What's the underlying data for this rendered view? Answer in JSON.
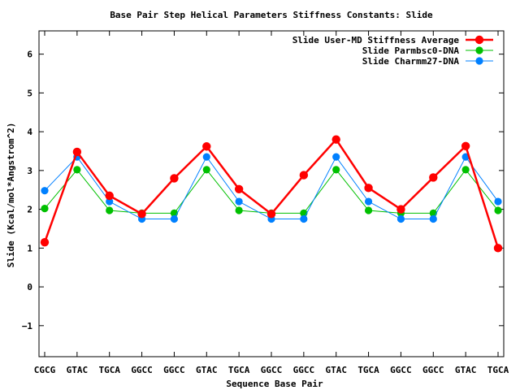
{
  "chart_data": {
    "type": "line",
    "title": "Base Pair Step Helical Parameters Stiffness Constants: Slide",
    "xlabel": "Sequence Base Pair",
    "ylabel": "Slide (Kcal/mol*Angstrom^2)",
    "ylim": [
      -1.8,
      6.6
    ],
    "yticks": [
      -1,
      0,
      1,
      2,
      3,
      4,
      5,
      6
    ],
    "categories": [
      "CGCG",
      "GTAC",
      "TGCA",
      "GGCC",
      "GGCC",
      "GTAC",
      "TGCA",
      "GGCC",
      "GGCC",
      "GTAC",
      "TGCA",
      "GGCC",
      "GGCC",
      "GTAC",
      "TGCA"
    ],
    "legend_position": "top-right",
    "grid": false,
    "series": [
      {
        "name": "Slide User-MD Stiffness Average",
        "color": "#ff0000",
        "values": [
          1.15,
          3.48,
          2.35,
          1.88,
          2.8,
          3.62,
          2.52,
          1.88,
          2.88,
          3.8,
          2.55,
          2.0,
          2.82,
          3.63,
          1.0
        ]
      },
      {
        "name": "Slide Parmbsc0-DNA",
        "color": "#00c000",
        "values": [
          2.02,
          3.02,
          1.97,
          1.9,
          1.9,
          3.02,
          1.97,
          1.9,
          1.9,
          3.02,
          1.97,
          1.9,
          1.9,
          3.02,
          1.97
        ]
      },
      {
        "name": "Slide Charmm27-DNA",
        "color": "#0080ff",
        "values": [
          2.48,
          3.35,
          2.2,
          1.75,
          1.75,
          3.35,
          2.2,
          1.75,
          1.75,
          3.35,
          2.2,
          1.75,
          1.75,
          3.35,
          2.2
        ]
      }
    ]
  }
}
